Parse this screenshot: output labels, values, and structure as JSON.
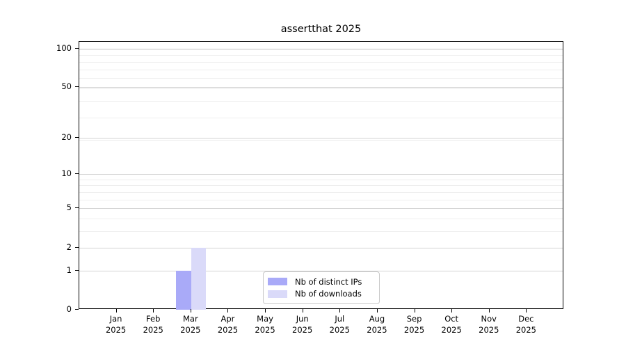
{
  "chart_data": {
    "type": "bar",
    "title": "assertthat 2025",
    "x_tick_months": [
      "Jan",
      "Feb",
      "Mar",
      "Apr",
      "May",
      "Jun",
      "Jul",
      "Aug",
      "Sep",
      "Oct",
      "Nov",
      "Dec"
    ],
    "x_tick_year": "2025",
    "y_ticks": [
      0,
      1,
      2,
      5,
      10,
      20,
      50,
      100
    ],
    "ylim": [
      0,
      113
    ],
    "y_scale": "log10(value+1)",
    "grid": "horizontal major and minor gridlines",
    "legend_position": "lower center inside plot",
    "series": [
      {
        "name": "Nb of distinct IPs",
        "color": "#a9aaf8",
        "values": [
          0,
          0,
          1,
          0,
          0,
          0,
          0,
          0,
          0,
          0,
          0,
          0
        ]
      },
      {
        "name": "Nb of downloads",
        "color": "#dadaf9",
        "values": [
          0,
          0,
          2,
          0,
          0,
          0,
          0,
          0,
          0,
          0,
          0,
          0
        ]
      }
    ]
  },
  "colors": {
    "background": "#ffffff",
    "axis": "#000000",
    "grid_major": "#d3d3d3",
    "grid_minor": "#eeeeee",
    "legend_border": "#c9c9c9"
  }
}
